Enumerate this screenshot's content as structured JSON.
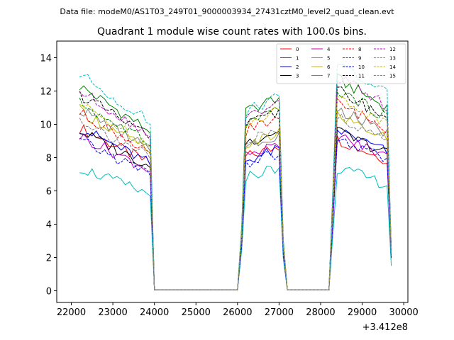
{
  "chart_data": {
    "type": "line",
    "suptitle": "Data file: modeM0/AS1T03_249T01_9000003934_27431cztM0_level2_quad_clean.evt",
    "title": "Quadrant 1 module wise count rates with 100.0s bins.",
    "xlabel": "",
    "ylabel": "",
    "x_offset_label": "+3.412e8",
    "xlim": [
      21650,
      30100
    ],
    "ylim": [
      -0.7,
      15.0
    ],
    "x_ticks": [
      22000,
      23000,
      24000,
      25000,
      26000,
      27000,
      28000,
      29000,
      30000
    ],
    "x_tick_labels": [
      "22000",
      "23000",
      "24000",
      "25000",
      "26000",
      "27000",
      "28000",
      "29000",
      "30000"
    ],
    "y_ticks": [
      0,
      2,
      4,
      6,
      8,
      10,
      12,
      14
    ],
    "y_tick_labels": [
      "0",
      "2",
      "4",
      "6",
      "8",
      "10",
      "12",
      "14"
    ],
    "legend_location": "top-right",
    "legend_columns": 4,
    "segments": [
      {
        "start": 22200,
        "end": 23900,
        "step": 100
      },
      {
        "start": 24000,
        "end": 26000,
        "step": 100,
        "flat_zero": true
      },
      {
        "start": 26100,
        "end": 27100,
        "step": 100
      },
      {
        "start": 27200,
        "end": 28200,
        "step": 100,
        "flat_zero": true
      },
      {
        "start": 28300,
        "end": 29700,
        "step": 100
      }
    ],
    "series": [
      {
        "name": "0",
        "color": "#ff0000",
        "dash": false,
        "level": [
          9.8,
          8.2,
          8.0
        ],
        "end": 2.5
      },
      {
        "name": "1",
        "color": "#008000",
        "dash": false,
        "level": [
          12.3,
          11.0,
          11.2
        ],
        "end": 2.3
      },
      {
        "name": "2",
        "color": "#0000ff",
        "dash": false,
        "level": [
          9.8,
          8.0,
          8.5
        ],
        "end": 2.0
      },
      {
        "name": "3",
        "color": "#000000",
        "dash": false,
        "level": [
          9.6,
          9.1,
          8.4
        ],
        "end": 2.4
      },
      {
        "name": "4",
        "color": "#bf00bf",
        "dash": false,
        "level": [
          9.3,
          8.3,
          8.2
        ],
        "end": 2.2
      },
      {
        "name": "5",
        "color": "#00bfbf",
        "dash": false,
        "level": [
          7.4,
          7.0,
          6.5
        ],
        "end": 1.5
      },
      {
        "name": "6",
        "color": "#bfbf00",
        "dash": false,
        "level": [
          10.8,
          8.9,
          9.3
        ],
        "end": 2.6
      },
      {
        "name": "7",
        "color": "#808080",
        "dash": false,
        "level": [
          10.9,
          8.9,
          9.6
        ],
        "end": 2.3
      },
      {
        "name": "8",
        "color": "#ff0000",
        "dash": true,
        "level": [
          10.7,
          9.8,
          9.9
        ],
        "end": 2.5
      },
      {
        "name": "9",
        "color": "#008000",
        "dash": true,
        "level": [
          11.3,
          10.2,
          10.6
        ],
        "end": 2.2
      },
      {
        "name": "10",
        "color": "#0000ff",
        "dash": true,
        "level": [
          9.0,
          7.8,
          8.0
        ],
        "end": 1.9
      },
      {
        "name": "11",
        "color": "#000000",
        "dash": true,
        "level": [
          11.8,
          10.1,
          10.6
        ],
        "end": 2.4
      },
      {
        "name": "12",
        "color": "#bf00bf",
        "dash": true,
        "level": [
          12.0,
          10.6,
          11.3
        ],
        "end": 2.5
      },
      {
        "name": "13",
        "color": "#00bfbf",
        "dash": true,
        "level": [
          13.0,
          11.0,
          12.0
        ],
        "end": 2.2
      },
      {
        "name": "14",
        "color": "#bfbf00",
        "dash": true,
        "level": [
          11.2,
          10.3,
          10.2
        ],
        "end": 2.4
      },
      {
        "name": "15",
        "color": "#808080",
        "dash": true,
        "level": [
          10.3,
          9.1,
          9.2
        ],
        "end": 2.1
      }
    ]
  }
}
